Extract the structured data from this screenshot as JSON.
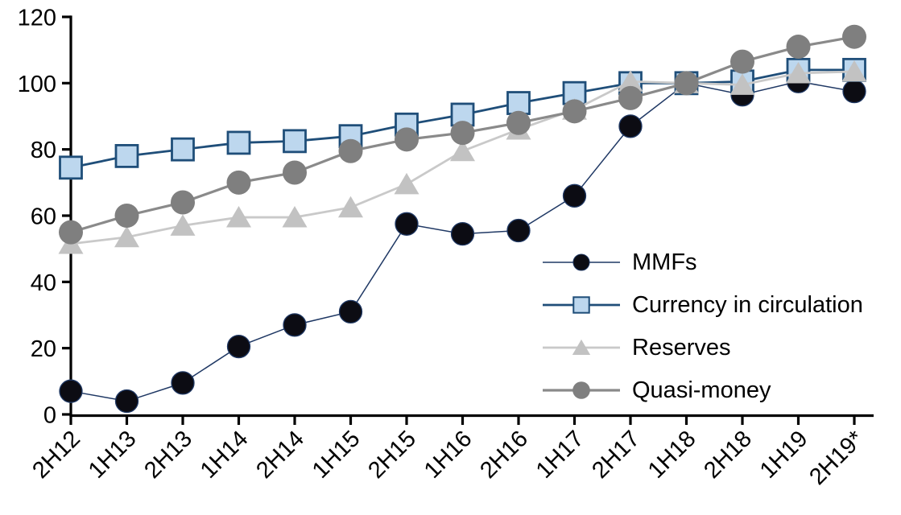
{
  "chart_data": {
    "type": "line",
    "title": "",
    "xlabel": "",
    "ylabel": "",
    "categories": [
      "2H12",
      "1H13",
      "2H13",
      "1H14",
      "2H14",
      "1H15",
      "2H15",
      "1H16",
      "2H16",
      "1H17",
      "2H17",
      "1H18",
      "2H18",
      "1H19",
      "2H19*"
    ],
    "series": [
      {
        "name": "MMFs",
        "marker": "circle",
        "marker_size": 14,
        "marker_fill": "#0c0c13",
        "marker_stroke": "#1f3864",
        "line_color": "#1f3864",
        "line_width": 1.5,
        "values": [
          7,
          4,
          9.5,
          20.5,
          27,
          31,
          57.5,
          54.5,
          55.5,
          66,
          87,
          100,
          96.5,
          100.5,
          97.5
        ]
      },
      {
        "name": "Currency in circulation",
        "marker": "square",
        "marker_size": 13.5,
        "marker_fill": "#bdd7ee",
        "marker_stroke": "#1f4e79",
        "line_color": "#1f4e79",
        "line_width": 2.8,
        "values": [
          74.5,
          78,
          80,
          82,
          82.5,
          84,
          87.5,
          90.5,
          94,
          97,
          100,
          100,
          100.5,
          104,
          104
        ]
      },
      {
        "name": "Reserves",
        "marker": "triangle",
        "marker_size": 15,
        "marker_fill": "#c2c2c2",
        "marker_stroke": "none",
        "line_color": "#c9c9c9",
        "line_width": 2.8,
        "values": [
          51.5,
          53.5,
          57,
          59.5,
          59.5,
          62.5,
          69.5,
          79.5,
          86,
          92,
          100.5,
          100,
          99.5,
          103,
          103.5
        ]
      },
      {
        "name": "Quasi-money",
        "marker": "circle",
        "marker_size": 15,
        "marker_fill": "#7f7f7f",
        "marker_stroke": "none",
        "line_color": "#8a8a8a",
        "line_width": 3.2,
        "values": [
          55,
          60,
          64,
          70,
          73,
          79.5,
          83,
          85,
          88,
          91.5,
          95.5,
          100,
          106.5,
          111,
          114
        ]
      }
    ],
    "y_axis": {
      "min": 0,
      "max": 120,
      "ticks": [
        0,
        20,
        40,
        60,
        80,
        100,
        120
      ]
    },
    "grid": false,
    "legend_position": "center-right",
    "axis_color": "#000000",
    "background": "#ffffff"
  }
}
